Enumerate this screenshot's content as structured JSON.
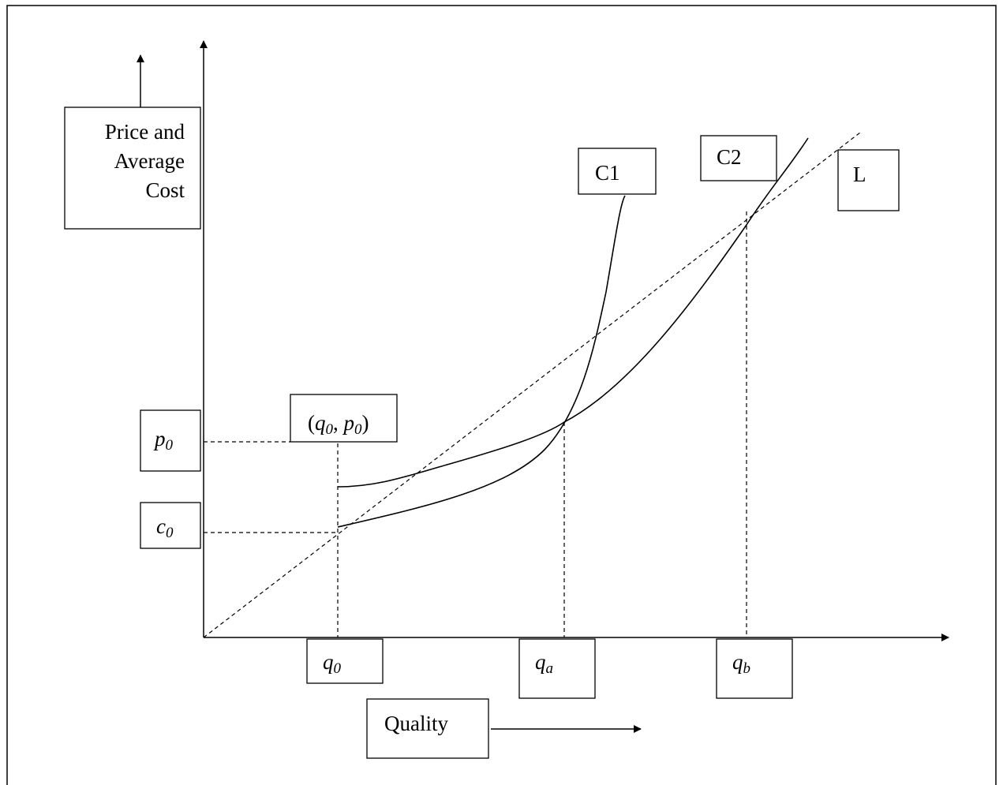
{
  "y_axis_label": {
    "line1": "Price and",
    "line2": "Average",
    "line3": "Cost"
  },
  "x_axis_label": "Quality",
  "curves": {
    "c1": "C1",
    "c2": "C2",
    "l": "L"
  },
  "point_label": {
    "open": "(",
    "q": "q",
    "q_sub": "0",
    "comma": ", ",
    "p": "p",
    "p_sub": "0",
    "close": ")"
  },
  "y_ticks": {
    "p0": {
      "main": "p",
      "sub": "0"
    },
    "c0": {
      "main": "c",
      "sub": "0"
    }
  },
  "x_ticks": {
    "q0": {
      "main": "q",
      "sub": "0"
    },
    "qa": {
      "main": "q",
      "sub": "a"
    },
    "qb": {
      "main": "q",
      "sub": "b"
    }
  },
  "colors": {
    "line": "#000000",
    "background": "#ffffff"
  }
}
